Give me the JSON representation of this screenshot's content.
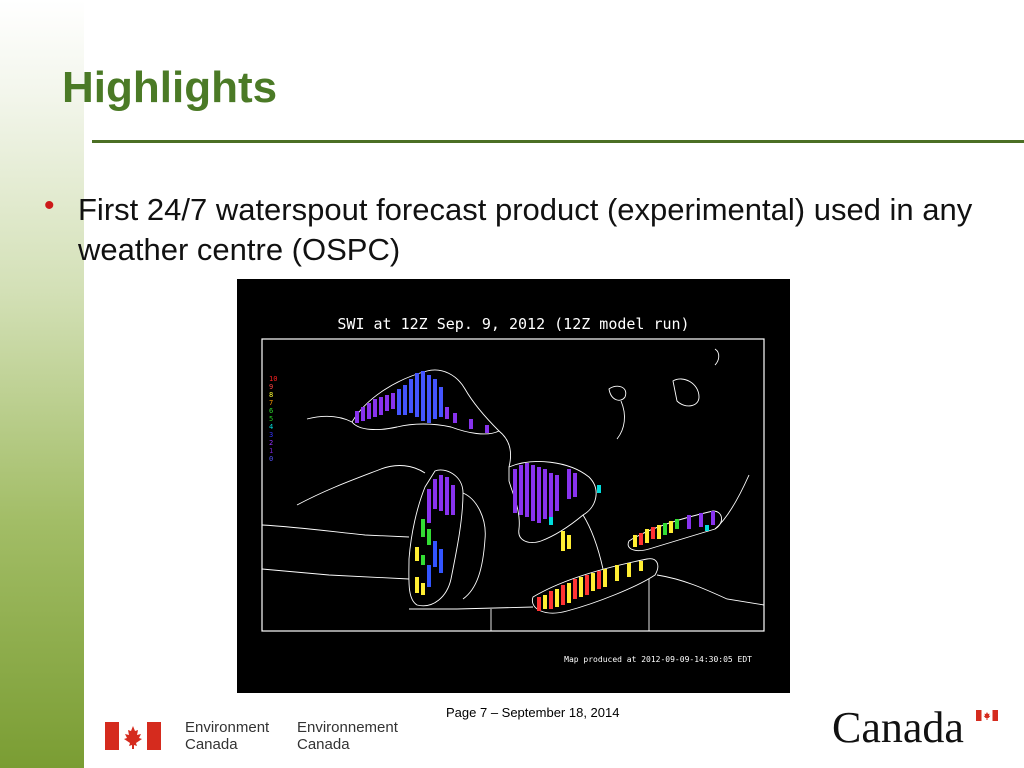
{
  "slide": {
    "title": "Highlights",
    "bullets": [
      "First 24/7 waterspout forecast product (experimental) used in any weather centre (OSPC)"
    ]
  },
  "map": {
    "title": "SWI at 12Z Sep.  9, 2012 (12Z model run)",
    "footer": "Map produced at 2012-09-09-14:30:05 EDT",
    "legend": [
      {
        "label": "10",
        "color": "#ff2222"
      },
      {
        "label": "9",
        "color": "#ff4444"
      },
      {
        "label": "8",
        "color": "#ffff33"
      },
      {
        "label": "7",
        "color": "#ff9900"
      },
      {
        "label": "6",
        "color": "#33dd33"
      },
      {
        "label": "5",
        "color": "#22cc22"
      },
      {
        "label": "4",
        "color": "#00dddd"
      },
      {
        "label": "3",
        "color": "#3333ff"
      },
      {
        "label": "2",
        "color": "#9933ff"
      },
      {
        "label": "1",
        "color": "#7722cc"
      },
      {
        "label": "0",
        "color": "#5555ff"
      }
    ]
  },
  "footer": {
    "page": "Page 7 – September 18, 2014",
    "dept_en_line1": "Environment",
    "dept_en_line2": "Canada",
    "dept_fr_line1": "Environnement",
    "dept_fr_line2": "Canada",
    "wordmark": "Canada"
  },
  "colors": {
    "title": "#4b7a26",
    "bullet": "#cc1a1a",
    "flag_red": "#d52b1e"
  }
}
